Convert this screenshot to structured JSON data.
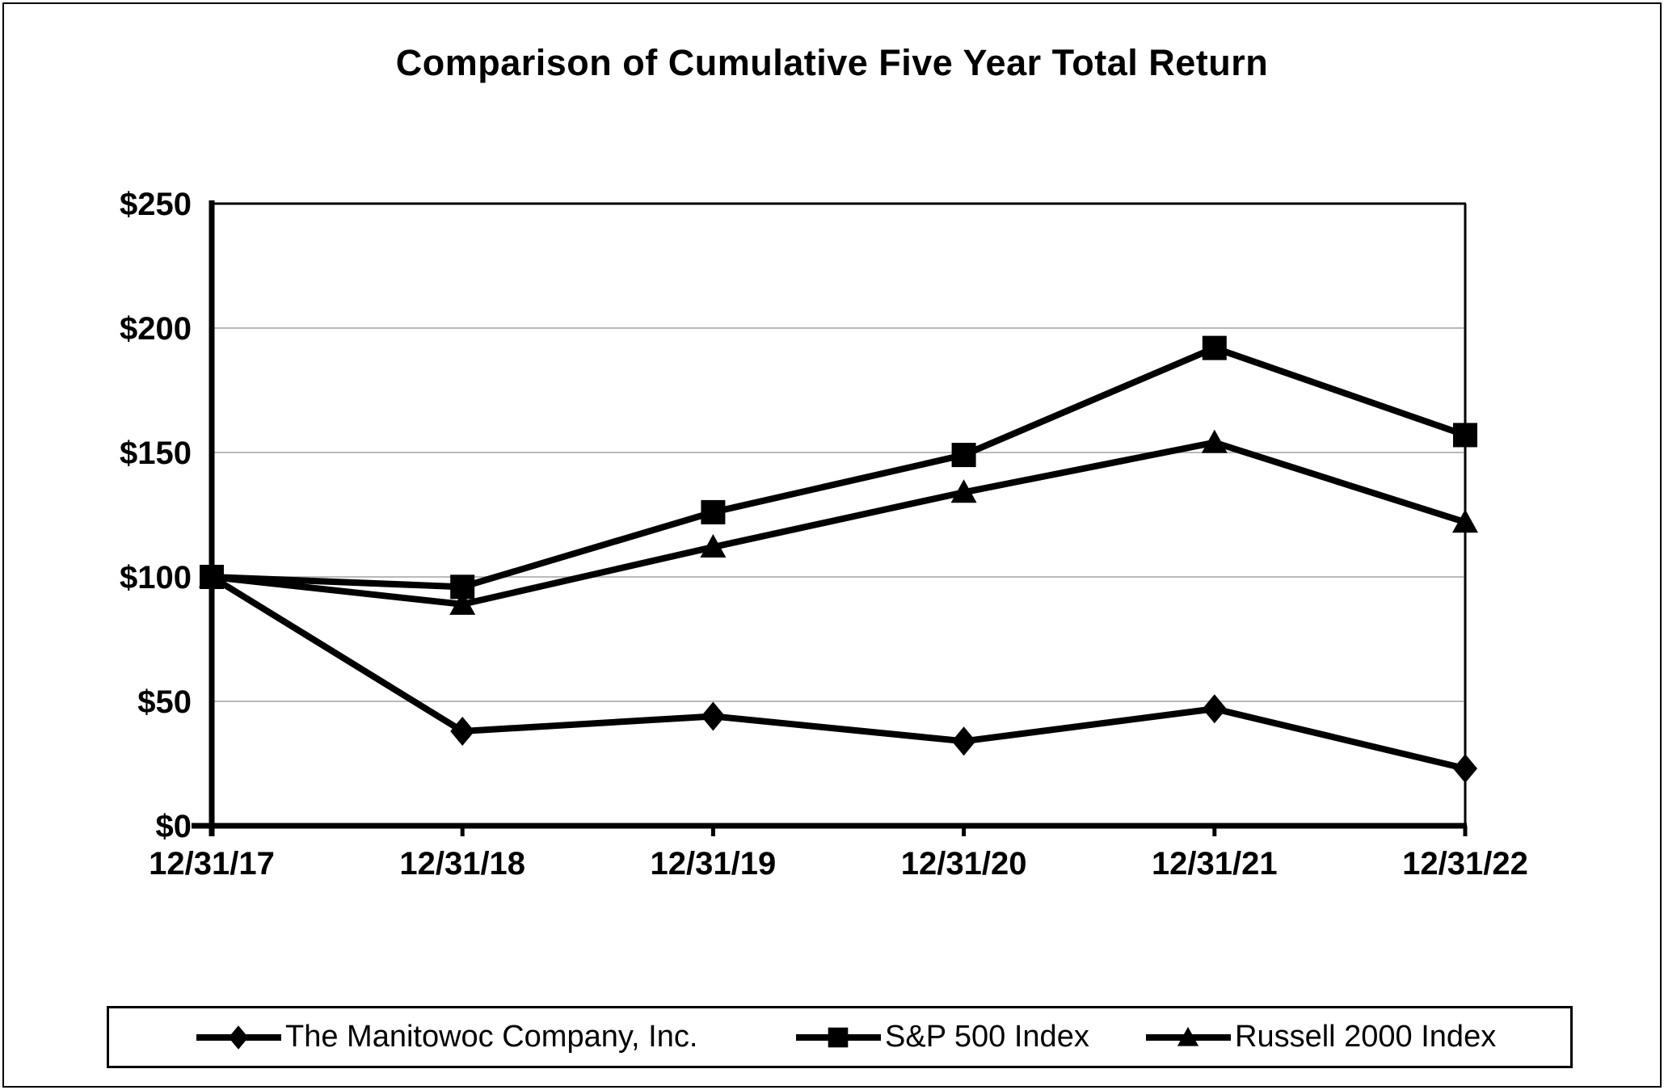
{
  "chart_data": {
    "type": "line",
    "title": "Comparison of Cumulative Five Year Total Return",
    "categories": [
      "12/31/17",
      "12/31/18",
      "12/31/19",
      "12/31/20",
      "12/31/21",
      "12/31/22"
    ],
    "series": [
      {
        "name": "The Manitowoc Company, Inc.",
        "marker": "diamond",
        "values": [
          100,
          38,
          44,
          34,
          47,
          23
        ]
      },
      {
        "name": "S&P 500 Index",
        "marker": "square",
        "values": [
          100,
          96,
          126,
          149,
          192,
          157
        ]
      },
      {
        "name": "Russell 2000 Index",
        "marker": "triangle",
        "values": [
          100,
          89,
          112,
          134,
          154,
          122
        ]
      }
    ],
    "y_ticks": [
      {
        "label": "$0",
        "value": 0
      },
      {
        "label": "$50",
        "value": 50
      },
      {
        "label": "$100",
        "value": 100
      },
      {
        "label": "$150",
        "value": 150
      },
      {
        "label": "$200",
        "value": 200
      },
      {
        "label": "$250",
        "value": 250
      }
    ],
    "ylim": [
      0,
      250
    ],
    "xlabel": "",
    "ylabel": "",
    "grid": true,
    "legend_position": "bottom",
    "z_order": [
      0,
      2,
      1
    ],
    "colors": {
      "line": "#000000",
      "grid": "#b9b9b9",
      "text": "#000000",
      "plot_border": "#000000",
      "background": "#ffffff"
    }
  }
}
